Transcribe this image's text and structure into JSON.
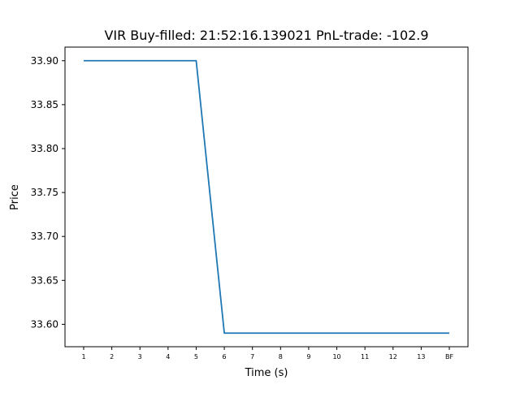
{
  "chart_data": {
    "type": "line",
    "title": "VIR  Buy-filled:  21:52:16.139021  PnL-trade:  -102.9",
    "xlabel": "Time (s)",
    "ylabel": "Price",
    "categories": [
      "1",
      "2",
      "3",
      "4",
      "5",
      "6",
      "7",
      "8",
      "9",
      "10",
      "11",
      "12",
      "13",
      "BF"
    ],
    "series": [
      {
        "values": [
          33.9,
          33.9,
          33.9,
          33.9,
          33.9,
          33.59,
          33.59,
          33.59,
          33.59,
          33.59,
          33.59,
          33.59,
          33.59,
          33.59
        ]
      }
    ],
    "ylim": [
      33.5745,
      33.9155
    ],
    "yticks": [
      33.6,
      33.65,
      33.7,
      33.75,
      33.8,
      33.85,
      33.9
    ],
    "ytick_labels": [
      "33.60",
      "33.65",
      "33.70",
      "33.75",
      "33.80",
      "33.85",
      "33.90"
    ],
    "grid": false,
    "line_color": "#1f77b4"
  }
}
